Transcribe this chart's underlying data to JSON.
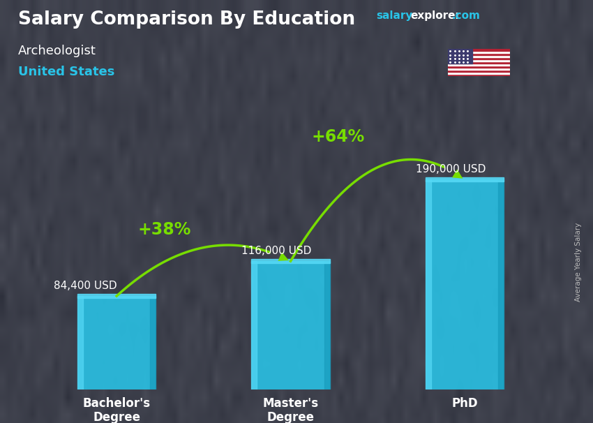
{
  "title_main": "Salary Comparison By Education",
  "title_sub1": "Archeologist",
  "title_sub2": "United States",
  "ylabel": "Average Yearly Salary",
  "categories": [
    "Bachelor's\nDegree",
    "Master's\nDegree",
    "PhD"
  ],
  "values": [
    84400,
    116000,
    190000
  ],
  "value_labels": [
    "84,400 USD",
    "116,000 USD",
    "190,000 USD"
  ],
  "bar_color_main": "#29c4e8",
  "bar_color_light": "#55d8f5",
  "bar_color_dark": "#1a9fc0",
  "pct_labels": [
    "+38%",
    "+64%"
  ],
  "pct_color": "#77dd00",
  "arrow_color": "#77dd00",
  "bg_color": "#5a6070",
  "title_color": "#ffffff",
  "sub1_color": "#ffffff",
  "sub2_color": "#29c4e8",
  "value_label_color": "#ffffff",
  "xtick_color": "#ffffff",
  "salary_color": "#29c4e8",
  "explorer_color": "#ffffff",
  "com_color": "#29c4e8",
  "ylabel_color": "#bbbbbb",
  "ylim_max": 230000,
  "bar_positions": [
    0,
    1,
    2
  ],
  "bar_width": 0.45
}
